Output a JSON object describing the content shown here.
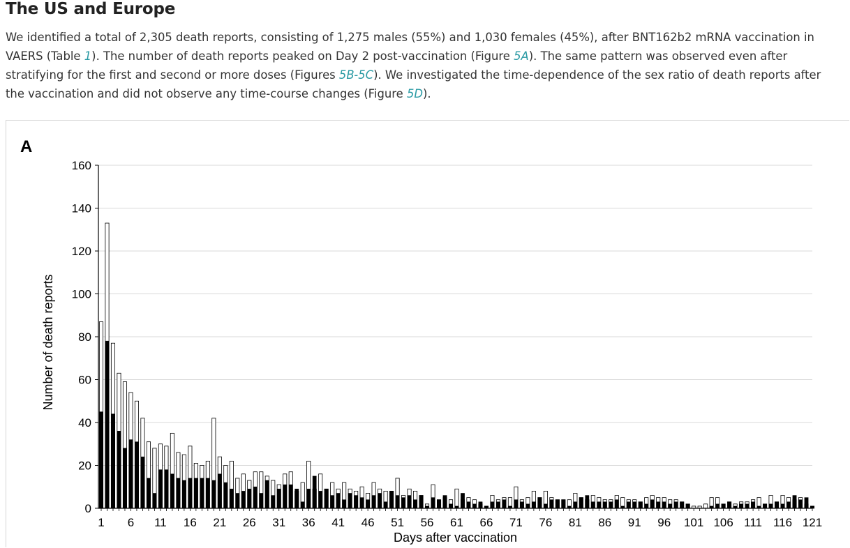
{
  "section": {
    "title": "The US and Europe"
  },
  "paragraph": {
    "s1": "We identified a total of 2,305 death reports, consisting of 1,275 males (55%) and 1,030 females (45%), after BNT162b2 mRNA vaccination in VAERS (Table ",
    "ref_table": "1",
    "s2": "). The number of death reports peaked on Day 2 post-vaccination (Figure ",
    "ref_5a": "5A",
    "s3": "). The same pattern was observed even after stratifying for the first and second or more doses (Figures ",
    "ref_5b5c": "5B-5C",
    "s4": "). We investigated the time-dependence of the sex ratio of death reports after the vaccination and did not observe any time-course changes (Figure ",
    "ref_5d": "5D",
    "s5": ")."
  },
  "colors": {
    "link": "#2a9aa4",
    "bar_black": "#000000",
    "bar_white": "#ffffff",
    "gridline": "#d9d9d9"
  },
  "chart_data": {
    "type": "bar",
    "panel_label": "A",
    "title": "",
    "xlabel": "Days after vaccination",
    "ylabel": "Number of death reports",
    "ylim": [
      0,
      160
    ],
    "yticks": [
      0,
      20,
      40,
      60,
      80,
      100,
      120,
      140,
      160
    ],
    "xtick_labels": [
      "1",
      "6",
      "11",
      "16",
      "21",
      "26",
      "31",
      "36",
      "41",
      "46",
      "51",
      "56",
      "61",
      "66",
      "71",
      "76",
      "81",
      "86",
      "91",
      "96",
      "101",
      "106",
      "111",
      "116",
      "121"
    ],
    "grid": "horizontal",
    "legend": "none",
    "days": [
      1,
      2,
      3,
      4,
      5,
      6,
      7,
      8,
      9,
      10,
      11,
      12,
      13,
      14,
      15,
      16,
      17,
      18,
      19,
      20,
      21,
      22,
      23,
      24,
      25,
      26,
      27,
      28,
      29,
      30,
      31,
      32,
      33,
      34,
      35,
      36,
      37,
      38,
      39,
      40,
      41,
      42,
      43,
      44,
      45,
      46,
      47,
      48,
      49,
      50,
      51,
      52,
      53,
      54,
      55,
      56,
      57,
      58,
      59,
      60,
      61,
      62,
      63,
      64,
      65,
      66,
      67,
      68,
      69,
      70,
      71,
      72,
      73,
      74,
      75,
      76,
      77,
      78,
      79,
      80,
      81,
      82,
      83,
      84,
      85,
      86,
      87,
      88,
      89,
      90,
      91,
      92,
      93,
      94,
      95,
      96,
      97,
      98,
      99,
      100,
      101,
      102,
      103,
      104,
      105,
      106,
      107,
      108,
      109,
      110,
      111,
      112,
      113,
      114,
      115,
      116,
      117,
      118,
      119,
      120,
      121
    ],
    "series": [
      {
        "fill": "black",
        "values": [
          45,
          78,
          44,
          36,
          28,
          32,
          31,
          24,
          14,
          7,
          18,
          18,
          16,
          14,
          13,
          14,
          14,
          14,
          14,
          13,
          16,
          12,
          9,
          7,
          8,
          9,
          10,
          7,
          13,
          6,
          9,
          11,
          11,
          9,
          3,
          9,
          15,
          8,
          9,
          6,
          7,
          4,
          7,
          6,
          5,
          4,
          6,
          7,
          3,
          8,
          6,
          5,
          6,
          4,
          6,
          1,
          5,
          4,
          6,
          2,
          1,
          7,
          3,
          2,
          3,
          1,
          3,
          3,
          4,
          1,
          4,
          3,
          2,
          3,
          5,
          2,
          4,
          4,
          4,
          1,
          3,
          5,
          6,
          3,
          3,
          3,
          3,
          4,
          1,
          3,
          3,
          3,
          2,
          4,
          3,
          3,
          2,
          3,
          3,
          2,
          0,
          0,
          0,
          1,
          2,
          2,
          3,
          1,
          2,
          2,
          3,
          1,
          2,
          2,
          3,
          2,
          3,
          6,
          4,
          5,
          1
        ],
        "totals": [
          87,
          133,
          77,
          63,
          59,
          54,
          50,
          42,
          31,
          28,
          30,
          29,
          35,
          26,
          25,
          29,
          21,
          20,
          22,
          42,
          24,
          20,
          22,
          14,
          16,
          13,
          17,
          17,
          15,
          13,
          11,
          16,
          17,
          8,
          12,
          22,
          9,
          16,
          9,
          12,
          9,
          12,
          9,
          8,
          10,
          7,
          12,
          9,
          8,
          8,
          14,
          6,
          9,
          8,
          6,
          2,
          11,
          4,
          5,
          4,
          9,
          4,
          5,
          4,
          2,
          1,
          6,
          4,
          5,
          5,
          10,
          4,
          5,
          8,
          5,
          8,
          5,
          4,
          4,
          4,
          7,
          5,
          4,
          6,
          5,
          4,
          4,
          6,
          5,
          4,
          4,
          3,
          5,
          6,
          5,
          5,
          4,
          4,
          3,
          2,
          1,
          1,
          2,
          5,
          5,
          2,
          3,
          2,
          3,
          3,
          4,
          5,
          2,
          6,
          3,
          6,
          5,
          4,
          5,
          2,
          1
        ]
      }
    ]
  }
}
